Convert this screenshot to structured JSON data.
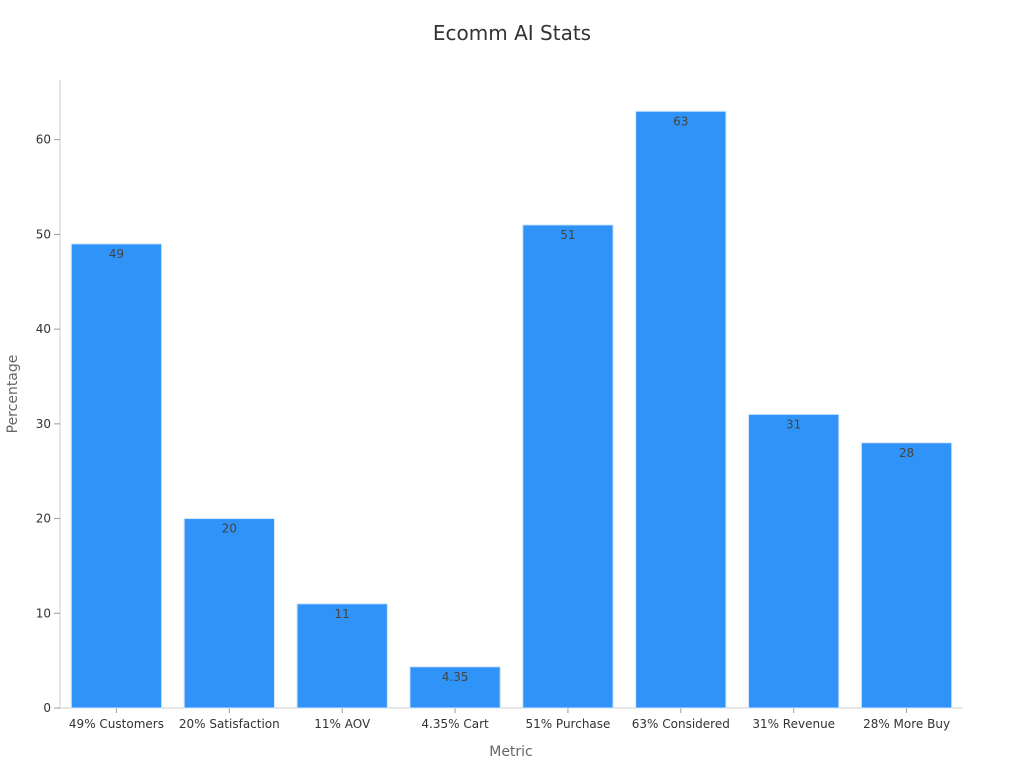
{
  "chart_data": {
    "type": "bar",
    "title": "Ecomm AI Stats",
    "xlabel": "Metric",
    "ylabel": "Percentage",
    "categories": [
      "49% Customers",
      "20% Satisfaction",
      "11% AOV",
      "4.35% Cart",
      "51% Purchase",
      "63% Considered",
      "31% Revenue",
      "28% More Buy"
    ],
    "values": [
      49,
      20,
      11,
      4.35,
      51,
      63,
      31,
      28
    ],
    "data_labels": [
      "49",
      "20",
      "11",
      "4.35",
      "51",
      "63",
      "31",
      "28"
    ],
    "yticks": [
      0,
      10,
      20,
      30,
      40,
      50,
      60
    ],
    "ytick_labels": [
      "0",
      "10",
      "20",
      "30",
      "40",
      "50",
      "60"
    ],
    "ylim": [
      0,
      66.3
    ],
    "grid": false,
    "legend": "none",
    "bar_color": "#3093f8",
    "bar_edge_color": "#d0e6fc"
  }
}
